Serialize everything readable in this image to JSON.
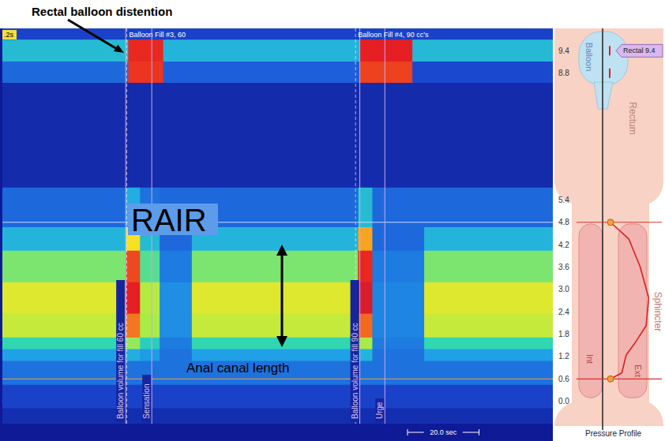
{
  "chart_data": {
    "type": "heatmap",
    "xlim": [
      0,
      154
    ],
    "ylim": [
      -0.6,
      10.0
    ],
    "yticks": [
      9.4,
      8.8,
      5.4,
      4.8,
      4.2,
      3.6,
      {
        "value": 3,
        "label": "3.0"
      },
      2.4,
      1.8,
      1.2,
      0.6,
      {
        "value": 0,
        "label": "0.0"
      }
    ],
    "tick_labels": "y",
    "color_range": [
      0,
      150
    ],
    "cells": [
      [
        0,
        154,
        9.7,
        10.0,
        14
      ],
      [
        0,
        35.2,
        9.11,
        9.7,
        45
      ],
      [
        35.2,
        45,
        9.11,
        9.7,
        130
      ],
      [
        45,
        100,
        9.11,
        9.7,
        42
      ],
      [
        100,
        114.7,
        9.11,
        9.7,
        132
      ],
      [
        114.7,
        154,
        9.11,
        9.7,
        44
      ],
      [
        0,
        35.2,
        8.54,
        9.11,
        24
      ],
      [
        35.2,
        45,
        8.54,
        9.11,
        128
      ],
      [
        45,
        100,
        8.54,
        9.11,
        22
      ],
      [
        100,
        114.7,
        8.54,
        9.11,
        126
      ],
      [
        114.7,
        154,
        8.54,
        9.11,
        16
      ],
      [
        0,
        154,
        5.73,
        8.54,
        6
      ],
      [
        0,
        34.5,
        4.67,
        5.73,
        24
      ],
      [
        34.5,
        38.5,
        4.67,
        5.73,
        40
      ],
      [
        38.5,
        44,
        4.67,
        5.73,
        26
      ],
      [
        44,
        53,
        4.67,
        5.73,
        24
      ],
      [
        53,
        99.5,
        4.67,
        5.73,
        24
      ],
      [
        99.5,
        103.5,
        4.67,
        5.73,
        45
      ],
      [
        103.5,
        118,
        4.67,
        5.73,
        24
      ],
      [
        118,
        154,
        4.67,
        5.73,
        24
      ],
      [
        0,
        34.5,
        4.04,
        4.67,
        42
      ],
      [
        34.5,
        38.5,
        4.04,
        4.67,
        95
      ],
      [
        38.5,
        44,
        4.04,
        4.67,
        45
      ],
      [
        44,
        53,
        4.04,
        4.67,
        24
      ],
      [
        53,
        99.5,
        4.04,
        4.67,
        42
      ],
      [
        99.5,
        103.5,
        4.04,
        4.67,
        110
      ],
      [
        103.5,
        118,
        4.04,
        4.67,
        24
      ],
      [
        118,
        154,
        4.04,
        4.67,
        42
      ],
      [
        0,
        34.5,
        3.19,
        4.04,
        68
      ],
      [
        34.5,
        38.5,
        3.19,
        4.04,
        125
      ],
      [
        38.5,
        44,
        3.19,
        4.04,
        62
      ],
      [
        44,
        53,
        3.19,
        4.04,
        28
      ],
      [
        53,
        99.5,
        3.19,
        4.04,
        68
      ],
      [
        99.5,
        103.5,
        3.19,
        4.04,
        130
      ],
      [
        103.5,
        118,
        3.19,
        4.04,
        28
      ],
      [
        118,
        154,
        3.19,
        4.04,
        68
      ],
      [
        0,
        34.5,
        2.35,
        3.19,
        88
      ],
      [
        34.5,
        38.5,
        2.35,
        3.19,
        132
      ],
      [
        38.5,
        44,
        2.35,
        3.19,
        78
      ],
      [
        44,
        53,
        2.35,
        3.19,
        32
      ],
      [
        53,
        99.5,
        2.35,
        3.19,
        88
      ],
      [
        99.5,
        103.5,
        2.35,
        3.19,
        135
      ],
      [
        103.5,
        118,
        2.35,
        3.19,
        30
      ],
      [
        118,
        154,
        2.35,
        3.19,
        88
      ],
      [
        0,
        34.5,
        1.71,
        2.35,
        82
      ],
      [
        34.5,
        38.5,
        1.71,
        2.35,
        118
      ],
      [
        38.5,
        44,
        1.71,
        2.35,
        75
      ],
      [
        44,
        53,
        1.71,
        2.35,
        32
      ],
      [
        53,
        99.5,
        1.71,
        2.35,
        82
      ],
      [
        99.5,
        103.5,
        1.71,
        2.35,
        120
      ],
      [
        103.5,
        118,
        1.71,
        2.35,
        30
      ],
      [
        118,
        154,
        1.71,
        2.35,
        82
      ],
      [
        0,
        34.5,
        1.4,
        1.71,
        56
      ],
      [
        34.5,
        38.5,
        1.4,
        1.71,
        72
      ],
      [
        38.5,
        44,
        1.4,
        1.71,
        52
      ],
      [
        44,
        53,
        1.4,
        1.71,
        28
      ],
      [
        53,
        99.5,
        1.4,
        1.71,
        56
      ],
      [
        99.5,
        103.5,
        1.4,
        1.71,
        75
      ],
      [
        103.5,
        118,
        1.4,
        1.71,
        28
      ],
      [
        118,
        154,
        1.4,
        1.71,
        56
      ],
      [
        0,
        34.5,
        1.08,
        1.4,
        36
      ],
      [
        34.5,
        38.5,
        1.08,
        1.4,
        40
      ],
      [
        38.5,
        44,
        1.08,
        1.4,
        35
      ],
      [
        44,
        53,
        1.08,
        1.4,
        26
      ],
      [
        53,
        99.5,
        1.08,
        1.4,
        36
      ],
      [
        99.5,
        103.5,
        1.08,
        1.4,
        42
      ],
      [
        103.5,
        118,
        1.08,
        1.4,
        26
      ],
      [
        118,
        154,
        1.08,
        1.4,
        36
      ],
      [
        0,
        154,
        0.44,
        1.08,
        26
      ],
      [
        0,
        154,
        -0.19,
        0.44,
        14
      ],
      [
        0,
        154,
        -0.6,
        -0.19,
        7
      ]
    ],
    "events": [
      {
        "x": 34.5,
        "label": "Balloon volume for fill 60 cc"
      },
      {
        "x": 41.8,
        "label": "Sensation"
      },
      {
        "x": 100,
        "label": "Balloon volume for fill 90 cc"
      },
      {
        "x": 107,
        "label": "Urge"
      }
    ],
    "fills": [
      {
        "x": 34.8,
        "label": "Balloon Fill #3, 60"
      },
      {
        "x": 98.8,
        "label": "Balloon Fill #4, 90 cc's"
      }
    ],
    "sphincter_bounds": [
      0.6,
      4.8
    ],
    "time_scale": {
      "value": 20,
      "label": "20.0 sec"
    },
    "timestamp": ".2s"
  },
  "annotations": {
    "title": "Rectal balloon distention",
    "rair": "RAIR",
    "canal": "Anal canal length"
  },
  "sidebar": {
    "balloon": "Balloon",
    "rectum": "Rectum",
    "sphincter": "Sphincter",
    "internal": "Int",
    "external": "Ext",
    "rectal_tag": "Rectal 9.4",
    "footer": "Pressure Profile"
  }
}
